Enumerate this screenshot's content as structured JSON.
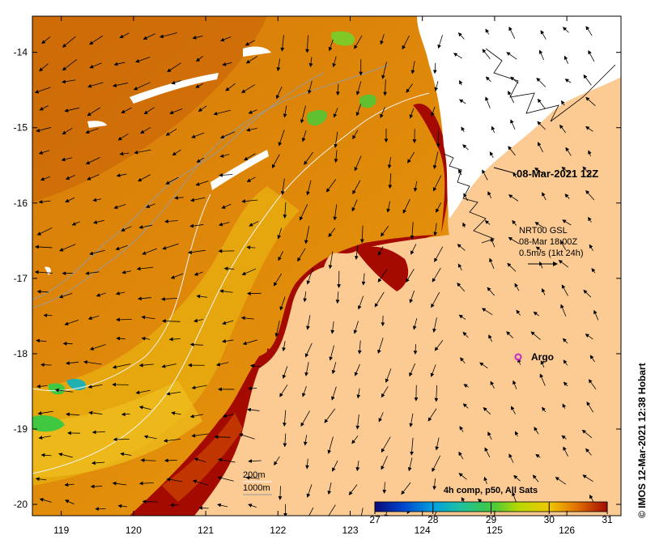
{
  "map": {
    "timestamp": "08-Mar-2021 12Z",
    "current_legend": {
      "model": "NRT00 GSL",
      "time": "08-Mar 18:00Z",
      "scale": "0.5m/s (1kt 24h)"
    },
    "argo_label": "Argo",
    "depth_legend": [
      "200m",
      "1000m"
    ],
    "credit": "© IMOS 12-Mar-2021 12:38 Hobart",
    "colorbar": {
      "title": "4h comp, p50, All Sats",
      "ticks": [
        "27",
        "28",
        "29",
        "30",
        "31"
      ],
      "min": 27,
      "max": 31
    },
    "axes": {
      "lon_ticks": [
        "119",
        "120",
        "121",
        "122",
        "123",
        "124",
        "125",
        "126"
      ],
      "lat_ticks": [
        "-14",
        "-15",
        "-16",
        "-17",
        "-18",
        "-19",
        "-20"
      ],
      "lon_range": [
        118.6,
        126.75
      ],
      "lat_range": [
        -20.15,
        -13.52
      ]
    },
    "colors": {
      "land": "#fccb94",
      "sst_warmest": "#a40a00",
      "sst_mid": "#d86a08",
      "sst_cool": "#e3a000",
      "no_data": "#ffffff",
      "argo": "#cc22cc"
    }
  }
}
